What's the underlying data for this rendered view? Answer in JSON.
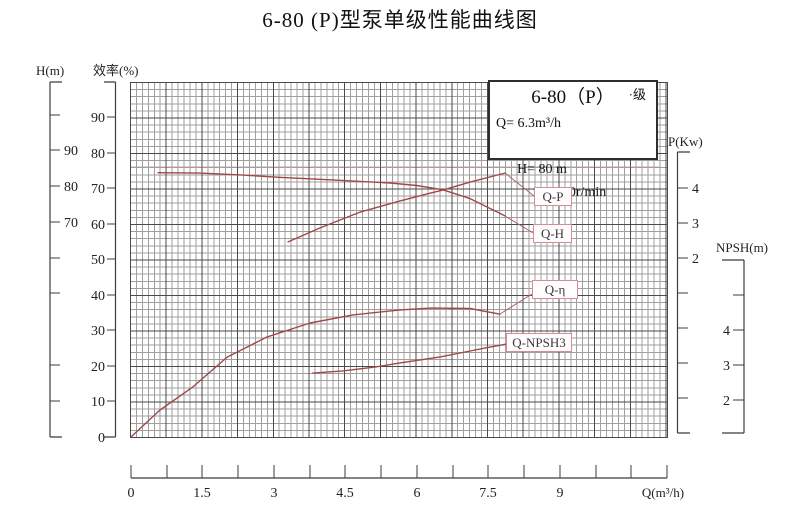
{
  "title": "6-80 (P)型泵单级性能曲线图",
  "info_box": {
    "model": "6-80（P）",
    "stage": "·级",
    "flow": "Q= 6.3m³/h",
    "head": "H= 80 m",
    "speed": "n=2950r/min"
  },
  "axes": {
    "h": {
      "title": "H(m)",
      "tick_labels": [
        "90",
        "80",
        "70"
      ]
    },
    "eff": {
      "title": "效率(%)",
      "tick_labels": [
        "90",
        "80",
        "70",
        "60",
        "50",
        "40",
        "30",
        "20",
        "10",
        "0"
      ]
    },
    "p": {
      "title": "P(Kw)",
      "tick_labels": [
        "4",
        "3",
        "2"
      ]
    },
    "npsh": {
      "title": "NPSH(m)",
      "tick_labels": [
        "4",
        "3",
        "2"
      ]
    },
    "q": {
      "title": "Q(m³/h)",
      "tick_labels": [
        "0",
        "1.5",
        "3",
        "4.5",
        "6",
        "7.5",
        "9"
      ]
    }
  },
  "curve_tags": {
    "qp": "Q-P",
    "qh": "Q-H",
    "qeta": "Q-η",
    "qnpsh": "Q-NPSH3"
  },
  "chart_data": {
    "type": "line",
    "title": "6-80 (P)型泵单级性能曲线图",
    "xlabel": "Q(m³/h)",
    "x_range": [
      0,
      11.25
    ],
    "x_tick_step": 0.75,
    "grid": true,
    "rated_point": {
      "Q": "6.3 m³/h",
      "H": "80 m",
      "n": "2950 r/min"
    },
    "y_axes": [
      {
        "id": "H",
        "label": "H(m)",
        "labeled_ticks": [
          90,
          80,
          70
        ]
      },
      {
        "id": "eff",
        "label": "效率(%)",
        "labeled_ticks": [
          90,
          80,
          70,
          60,
          50,
          40,
          30,
          20,
          10,
          0
        ]
      },
      {
        "id": "P",
        "label": "P(Kw)",
        "labeled_ticks": [
          4,
          3,
          2
        ]
      },
      {
        "id": "NPSH",
        "label": "NPSH(m)",
        "labeled_ticks": [
          4,
          3,
          2
        ]
      }
    ],
    "series": [
      {
        "name": "Q-H",
        "scale": "H",
        "points": [
          [
            0.57,
            83.6
          ],
          [
            1.45,
            83.5
          ],
          [
            2.3,
            83.0
          ],
          [
            3.1,
            82.3
          ],
          [
            4.18,
            81.6
          ],
          [
            5.44,
            80.7
          ],
          [
            6.0,
            80.0
          ],
          [
            6.55,
            78.8
          ],
          [
            7.12,
            76.3
          ],
          [
            7.86,
            71.4
          ]
        ]
      },
      {
        "name": "Q-P",
        "scale": "P",
        "points": [
          [
            3.3,
            2.46
          ],
          [
            3.97,
            2.86
          ],
          [
            4.81,
            3.31
          ],
          [
            5.65,
            3.63
          ],
          [
            6.3,
            3.86
          ],
          [
            6.55,
            3.94
          ],
          [
            7.12,
            4.17
          ],
          [
            7.86,
            4.43
          ]
        ]
      },
      {
        "name": "Q-η",
        "scale": "eff",
        "points": [
          [
            0.0,
            0.0
          ],
          [
            0.61,
            7.6
          ],
          [
            1.3,
            14.1
          ],
          [
            2.02,
            22.5
          ],
          [
            2.86,
            28.2
          ],
          [
            3.76,
            32.1
          ],
          [
            4.66,
            34.4
          ],
          [
            5.65,
            35.8
          ],
          [
            6.3,
            36.3
          ],
          [
            7.12,
            36.2
          ],
          [
            7.75,
            34.6
          ]
        ]
      },
      {
        "name": "Q-NPSH3",
        "scale": "NPSH",
        "points": [
          [
            3.82,
            2.77
          ],
          [
            4.45,
            2.83
          ],
          [
            5.12,
            2.94
          ],
          [
            5.65,
            3.06
          ],
          [
            6.49,
            3.23
          ],
          [
            7.12,
            3.4
          ],
          [
            7.54,
            3.51
          ],
          [
            7.9,
            3.6
          ]
        ]
      }
    ]
  }
}
